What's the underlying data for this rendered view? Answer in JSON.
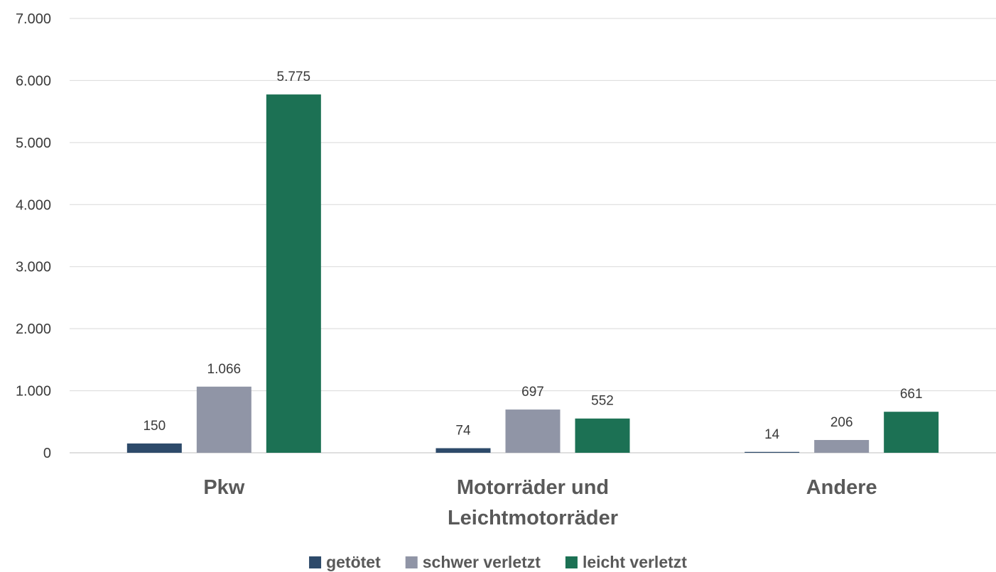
{
  "chart_data": {
    "type": "bar",
    "categories": [
      [
        "Pkw"
      ],
      [
        "Motorräder und",
        "Leichtmotorräder"
      ],
      [
        "Andere"
      ]
    ],
    "series": [
      {
        "name": "getötet",
        "color": "#2d4a6a",
        "values": [
          150,
          74,
          14
        ],
        "labels": [
          "150",
          "74",
          "14"
        ]
      },
      {
        "name": "schwer verletzt",
        "color": "#9095a6",
        "values": [
          1066,
          697,
          206
        ],
        "labels": [
          "1.066",
          "697",
          "206"
        ]
      },
      {
        "name": "leicht verletzt",
        "color": "#1c7154",
        "values": [
          5775,
          552,
          661
        ],
        "labels": [
          "5.775",
          "552",
          "661"
        ]
      }
    ],
    "ylim": [
      0,
      7000
    ],
    "yticks": [
      0,
      1000,
      2000,
      3000,
      4000,
      5000,
      6000,
      7000
    ],
    "ytick_labels": [
      "0",
      "1.000",
      "2.000",
      "3.000",
      "4.000",
      "5.000",
      "6.000",
      "7.000"
    ],
    "grid": true,
    "legend_position": "bottom"
  }
}
